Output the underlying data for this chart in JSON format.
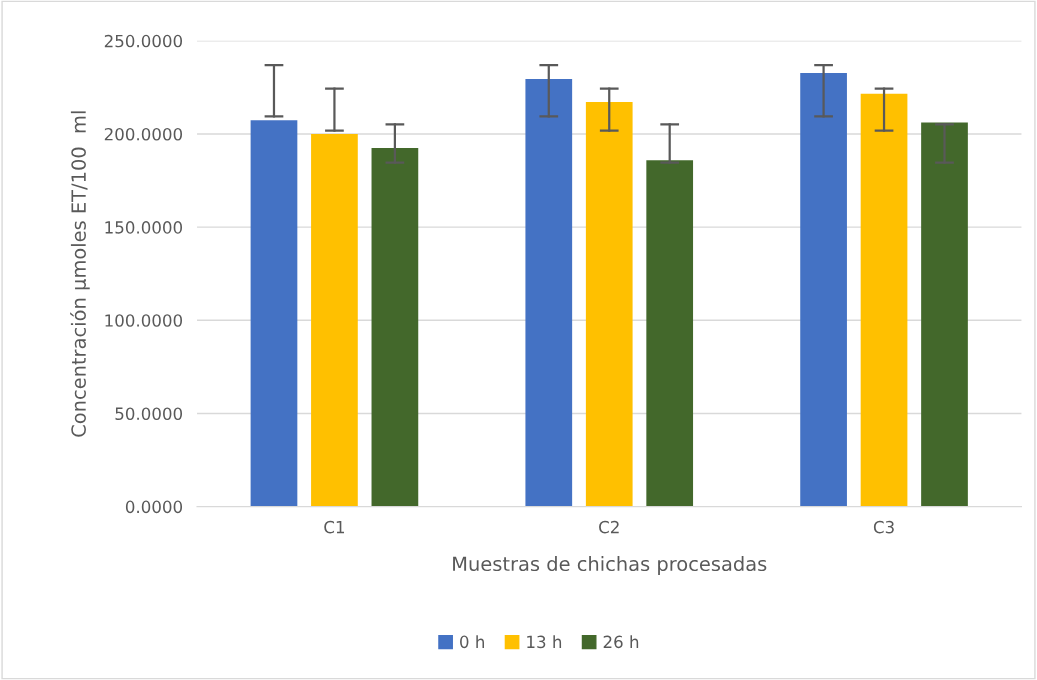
{
  "chart_data": {
    "type": "bar",
    "xlabel": "Muestras de chichas procesadas",
    "ylabel": "Concentración µmoles ET/100  ml",
    "categories": [
      "C1",
      "C2",
      "C3"
    ],
    "series": [
      {
        "name": "0 h",
        "color": "#4472c4",
        "values": [
          207.3,
          229.5,
          232.7
        ],
        "errors": [
          [
            209.4,
            237.0
          ],
          [
            209.4,
            237.0
          ],
          [
            209.4,
            237.0
          ]
        ]
      },
      {
        "name": "13 h",
        "color": "#ffc000",
        "values": [
          200.0,
          217.1,
          221.6
        ],
        "errors": [
          [
            201.8,
            224.3
          ],
          [
            201.8,
            224.3
          ],
          [
            201.8,
            224.3
          ]
        ]
      },
      {
        "name": "26 h",
        "color": "#43682b",
        "values": [
          192.5,
          185.9,
          206.1
        ],
        "errors": [
          [
            184.6,
            205.1
          ],
          [
            184.6,
            205.1
          ],
          [
            184.6,
            205.1
          ]
        ]
      }
    ],
    "ylim": [
      0,
      250
    ],
    "yticks": [
      {
        "value": 0,
        "label": "0.0000"
      },
      {
        "value": 50,
        "label": "50.0000"
      },
      {
        "value": 100,
        "label": "100.0000"
      },
      {
        "value": 150,
        "label": "150.0000"
      },
      {
        "value": 200,
        "label": "200.0000"
      },
      {
        "value": 250,
        "label": "250.0000"
      }
    ],
    "grid": "y",
    "legend": "bottom"
  }
}
